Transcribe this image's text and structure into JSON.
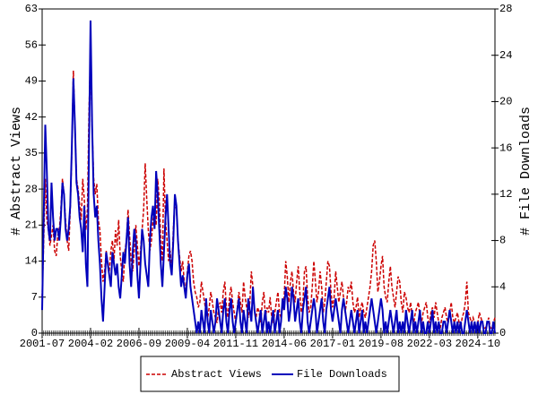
{
  "chart_data": {
    "type": "line",
    "xlabel": null,
    "ylabel": "# Abstract Views",
    "y2label": "# File Downloads",
    "x": [
      "2001-07",
      "2001-08",
      "2001-09",
      "2001-10",
      "2001-11",
      "2001-12",
      "2002-01",
      "2002-02",
      "2002-03",
      "2002-04",
      "2002-05",
      "2002-06",
      "2002-07",
      "2002-08",
      "2002-09",
      "2002-10",
      "2002-11",
      "2002-12",
      "2003-01",
      "2003-02",
      "2003-03",
      "2003-04",
      "2003-05",
      "2003-06",
      "2003-07",
      "2003-08",
      "2003-09",
      "2003-10",
      "2003-11",
      "2003-12",
      "2004-01",
      "2004-02",
      "2004-03",
      "2004-04",
      "2004-05",
      "2004-06",
      "2004-07",
      "2004-08",
      "2004-09",
      "2004-10",
      "2004-11",
      "2004-12",
      "2005-01",
      "2005-02",
      "2005-03",
      "2005-04",
      "2005-05",
      "2005-06",
      "2005-07",
      "2005-08",
      "2005-09",
      "2005-10",
      "2005-11",
      "2005-12",
      "2006-01",
      "2006-02",
      "2006-03",
      "2006-04",
      "2006-05",
      "2006-06",
      "2006-07",
      "2006-08",
      "2006-09",
      "2006-10",
      "2006-11",
      "2006-12",
      "2007-01",
      "2007-02",
      "2007-03",
      "2007-04",
      "2007-05",
      "2007-06",
      "2007-07",
      "2007-08",
      "2007-09",
      "2007-10",
      "2007-11",
      "2007-12",
      "2008-01",
      "2008-02",
      "2008-03",
      "2008-04",
      "2008-05",
      "2008-06",
      "2008-07",
      "2008-08",
      "2008-09",
      "2008-10",
      "2008-11",
      "2008-12",
      "2009-01",
      "2009-02",
      "2009-03",
      "2009-04",
      "2009-05",
      "2009-06",
      "2009-07",
      "2009-08",
      "2009-09",
      "2009-10",
      "2009-11",
      "2009-12",
      "2010-01",
      "2010-02",
      "2010-03",
      "2010-04",
      "2010-05",
      "2010-06",
      "2010-07",
      "2010-08",
      "2010-09",
      "2010-10",
      "2010-11",
      "2010-12",
      "2011-01",
      "2011-02",
      "2011-03",
      "2011-04",
      "2011-05",
      "2011-06",
      "2011-07",
      "2011-08",
      "2011-09",
      "2011-10",
      "2011-11",
      "2011-12",
      "2012-01",
      "2012-02",
      "2012-03",
      "2012-04",
      "2012-05",
      "2012-06",
      "2012-07",
      "2012-08",
      "2012-09",
      "2012-10",
      "2012-11",
      "2012-12",
      "2013-01",
      "2013-02",
      "2013-03",
      "2013-04",
      "2013-05",
      "2013-06",
      "2013-07",
      "2013-08",
      "2013-09",
      "2013-10",
      "2013-11",
      "2013-12",
      "2014-01",
      "2014-02",
      "2014-03",
      "2014-04",
      "2014-05",
      "2014-06",
      "2014-07",
      "2014-08",
      "2014-09",
      "2014-10",
      "2014-11",
      "2014-12",
      "2015-01",
      "2015-02",
      "2015-03",
      "2015-04",
      "2015-05",
      "2015-06",
      "2015-07",
      "2015-08",
      "2015-09",
      "2015-10",
      "2015-11",
      "2015-12",
      "2016-01",
      "2016-02",
      "2016-03",
      "2016-04",
      "2016-05",
      "2016-06",
      "2016-07",
      "2016-08",
      "2016-09",
      "2016-10",
      "2016-11",
      "2016-12",
      "2017-01",
      "2017-02",
      "2017-03",
      "2017-04",
      "2017-05",
      "2017-06",
      "2017-07",
      "2017-08",
      "2017-09",
      "2017-10",
      "2017-11",
      "2017-12",
      "2018-01",
      "2018-02",
      "2018-03",
      "2018-04",
      "2018-05",
      "2018-06",
      "2018-07",
      "2018-08",
      "2018-09",
      "2018-10",
      "2018-11",
      "2018-12",
      "2019-01",
      "2019-02",
      "2019-03",
      "2019-04",
      "2019-05",
      "2019-06",
      "2019-07",
      "2019-08",
      "2019-09",
      "2019-10",
      "2019-11",
      "2019-12",
      "2020-01",
      "2020-02",
      "2020-03",
      "2020-04",
      "2020-05",
      "2020-06",
      "2020-07",
      "2020-08",
      "2020-09",
      "2020-10",
      "2020-11",
      "2020-12",
      "2021-01",
      "2021-02",
      "2021-03",
      "2021-04",
      "2021-05",
      "2021-06",
      "2021-07",
      "2021-08",
      "2021-09",
      "2021-10",
      "2021-11",
      "2021-12",
      "2022-01",
      "2022-02",
      "2022-03",
      "2022-04",
      "2022-05",
      "2022-06",
      "2022-07",
      "2022-08",
      "2022-09",
      "2022-10",
      "2022-11",
      "2022-12",
      "2023-01",
      "2023-02",
      "2023-03",
      "2023-04",
      "2023-05",
      "2023-06",
      "2023-07",
      "2023-08",
      "2023-09",
      "2023-10",
      "2023-11",
      "2023-12",
      "2024-01",
      "2024-02",
      "2024-03",
      "2024-04",
      "2024-05",
      "2024-06",
      "2024-07",
      "2024-08",
      "2024-09",
      "2024-10",
      "2024-11",
      "2024-12",
      "2025-01",
      "2025-02",
      "2025-03",
      "2025-04",
      "2025-05",
      "2025-06",
      "2025-07",
      "2025-08",
      "2025-09"
    ],
    "xticks": [
      "2001-07",
      "2004-02",
      "2006-09",
      "2009-04",
      "2011-11",
      "2014-06",
      "2017-01",
      "2019-08",
      "2022-03",
      "2024-10"
    ],
    "ylim": [
      0,
      63
    ],
    "yticks": [
      0,
      7,
      14,
      21,
      28,
      35,
      42,
      49,
      56,
      63
    ],
    "y2lim": [
      0,
      28
    ],
    "y2ticks": [
      0,
      4,
      8,
      12,
      16,
      20,
      24,
      28
    ],
    "legend": "bottom",
    "series": [
      {
        "name": "Abstract Views",
        "color": "#cc0000",
        "dashed": true,
        "values": [
          7,
          18,
          30,
          22,
          20,
          17,
          19,
          21,
          16,
          15,
          19,
          20,
          24,
          30,
          27,
          22,
          18,
          16,
          24,
          35,
          51,
          40,
          30,
          28,
          25,
          22,
          30,
          26,
          20,
          24,
          43,
          55,
          40,
          30,
          27,
          29,
          22,
          20,
          14,
          10,
          12,
          16,
          14,
          12,
          16,
          18,
          14,
          20,
          17,
          22,
          15,
          12,
          10,
          16,
          18,
          24,
          19,
          14,
          12,
          16,
          21,
          17,
          13,
          16,
          20,
          24,
          33,
          26,
          20,
          16,
          18,
          22,
          24,
          21,
          30,
          26,
          18,
          14,
          32,
          22,
          18,
          14,
          16,
          12,
          20,
          26,
          24,
          18,
          15,
          12,
          14,
          10,
          8,
          12,
          15,
          16,
          14,
          10,
          8,
          7,
          5,
          6,
          10,
          8,
          6,
          4,
          3,
          5,
          8,
          6,
          4,
          3,
          2,
          5,
          6,
          4,
          8,
          10,
          5,
          3,
          7,
          9,
          6,
          4,
          2,
          5,
          8,
          6,
          4,
          10,
          7,
          5,
          3,
          6,
          12,
          9,
          4,
          3,
          5,
          4,
          2,
          6,
          8,
          3,
          5,
          4,
          7,
          3,
          2,
          4,
          6,
          8,
          4,
          3,
          5,
          7,
          14,
          11,
          6,
          10,
          12,
          8,
          6,
          10,
          13,
          8,
          4,
          6,
          12,
          13,
          7,
          4,
          5,
          9,
          14,
          10,
          6,
          8,
          12,
          9,
          4,
          6,
          10,
          14,
          13,
          8,
          5,
          7,
          12,
          9,
          6,
          8,
          10,
          7,
          4,
          6,
          9,
          8,
          10,
          6,
          4,
          5,
          7,
          3,
          5,
          6,
          4,
          3,
          5,
          7,
          9,
          12,
          17,
          18,
          14,
          8,
          10,
          13,
          15,
          9,
          7,
          6,
          10,
          13,
          9,
          7,
          5,
          8,
          11,
          10,
          6,
          4,
          8,
          7,
          5,
          4,
          6,
          3,
          2,
          4,
          5,
          6,
          3,
          2,
          4,
          5,
          6,
          3,
          2,
          4,
          5,
          3,
          6,
          4,
          2,
          1,
          3,
          4,
          5,
          3,
          2,
          4,
          6,
          3,
          2,
          3,
          4,
          2,
          1,
          3,
          4,
          6,
          10,
          4,
          3,
          2,
          3,
          2,
          1,
          2,
          4,
          3,
          2,
          1,
          1,
          2,
          3,
          1,
          1,
          2,
          3
        ]
      },
      {
        "name": "File Downloads",
        "color": "#0000bb",
        "axis": "y2",
        "values": [
          2,
          10,
          18,
          14,
          9,
          8,
          13,
          10,
          8,
          9,
          9,
          8,
          10,
          13,
          12,
          9,
          8,
          9,
          11,
          16,
          22,
          18,
          13,
          12,
          10,
          9,
          7,
          11,
          6,
          4,
          16,
          27,
          18,
          12,
          10,
          11,
          8,
          6,
          3,
          1,
          4,
          7,
          6,
          5,
          4,
          7,
          6,
          5,
          6,
          4,
          3,
          5,
          7,
          6,
          8,
          10,
          6,
          4,
          7,
          9,
          8,
          5,
          3,
          6,
          9,
          8,
          6,
          5,
          4,
          8,
          10,
          11,
          9,
          14,
          12,
          9,
          6,
          4,
          7,
          10,
          12,
          9,
          6,
          5,
          8,
          12,
          11,
          8,
          6,
          4,
          5,
          4,
          3,
          5,
          6,
          4,
          3,
          2,
          1,
          0,
          1,
          0,
          2,
          1,
          0,
          3,
          1,
          0,
          2,
          1,
          0,
          1,
          3,
          2,
          1,
          0,
          2,
          3,
          1,
          0,
          2,
          3,
          1,
          0,
          1,
          2,
          3,
          1,
          0,
          2,
          1,
          0,
          3,
          2,
          1,
          4,
          2,
          1,
          0,
          1,
          2,
          0,
          1,
          2,
          0,
          1,
          0,
          1,
          2,
          0,
          1,
          2,
          0,
          1,
          3,
          2,
          4,
          3,
          1,
          2,
          4,
          3,
          1,
          2,
          3,
          1,
          0,
          2,
          3,
          4,
          1,
          0,
          1,
          2,
          3,
          2,
          0,
          1,
          2,
          3,
          1,
          0,
          2,
          3,
          4,
          2,
          1,
          2,
          3,
          2,
          1,
          0,
          2,
          3,
          2,
          1,
          0,
          1,
          2,
          1,
          0,
          1,
          2,
          0,
          1,
          2,
          0,
          1,
          0,
          1,
          2,
          3,
          2,
          1,
          0,
          1,
          2,
          3,
          2,
          0,
          1,
          0,
          1,
          2,
          1,
          0,
          1,
          2,
          0,
          1,
          0,
          1,
          0,
          2,
          1,
          0,
          1,
          2,
          0,
          1,
          0,
          1,
          2,
          0,
          1,
          0,
          0,
          1,
          0,
          1,
          2,
          0,
          1,
          0,
          1,
          0,
          0,
          1,
          1,
          0,
          1,
          2,
          1,
          0,
          1,
          0,
          1,
          0,
          1,
          0,
          0,
          1,
          2,
          1,
          0,
          1,
          0,
          1,
          0,
          1,
          0,
          1,
          1,
          0,
          0,
          1,
          1,
          0,
          0,
          1,
          0
        ]
      }
    ]
  }
}
